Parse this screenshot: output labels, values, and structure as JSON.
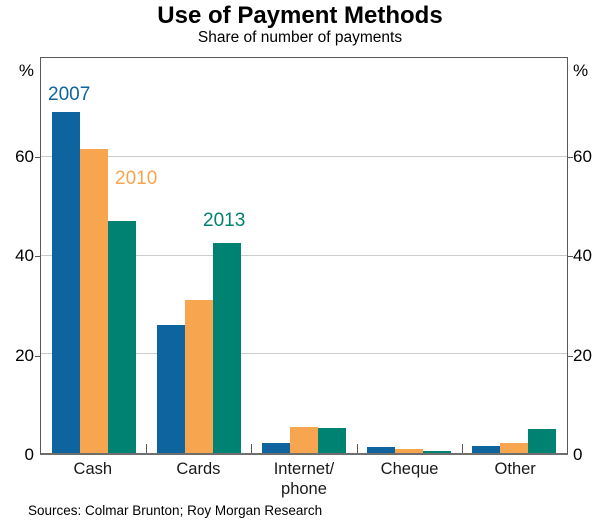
{
  "title": "Use of Payment Methods",
  "subtitle": "Share of number of payments",
  "source_note": "Sources: Colmar Brunton; Roy Morgan Research",
  "axis": {
    "unit_left": "%",
    "unit_right": "%",
    "x_labels": [
      "Cash",
      "Cards",
      "Internet/\nphone",
      "Cheque",
      "Other"
    ]
  },
  "chart_data": {
    "type": "bar",
    "title": "Use of Payment Methods",
    "subtitle": "Share of number of payments",
    "categories": [
      "Cash",
      "Cards",
      "Internet/phone",
      "Cheque",
      "Other"
    ],
    "series": [
      {
        "name": "2007",
        "color": "#0E649E",
        "values": [
          69,
          26,
          2,
          1.2,
          1.5
        ]
      },
      {
        "name": "2010",
        "color": "#F7A64F",
        "values": [
          61.5,
          31,
          5.2,
          0.8,
          2
        ]
      },
      {
        "name": "2013",
        "color": "#008272",
        "values": [
          47,
          42.5,
          5,
          0.5,
          4.8
        ]
      }
    ],
    "ylabel": "%",
    "ylim": [
      0,
      80
    ],
    "yticks": [
      0,
      20,
      40,
      60
    ],
    "grid": true,
    "legend_position": "inline annotations near bars",
    "frame_color": "#595959",
    "gridline_color": "#CBCBCB"
  }
}
